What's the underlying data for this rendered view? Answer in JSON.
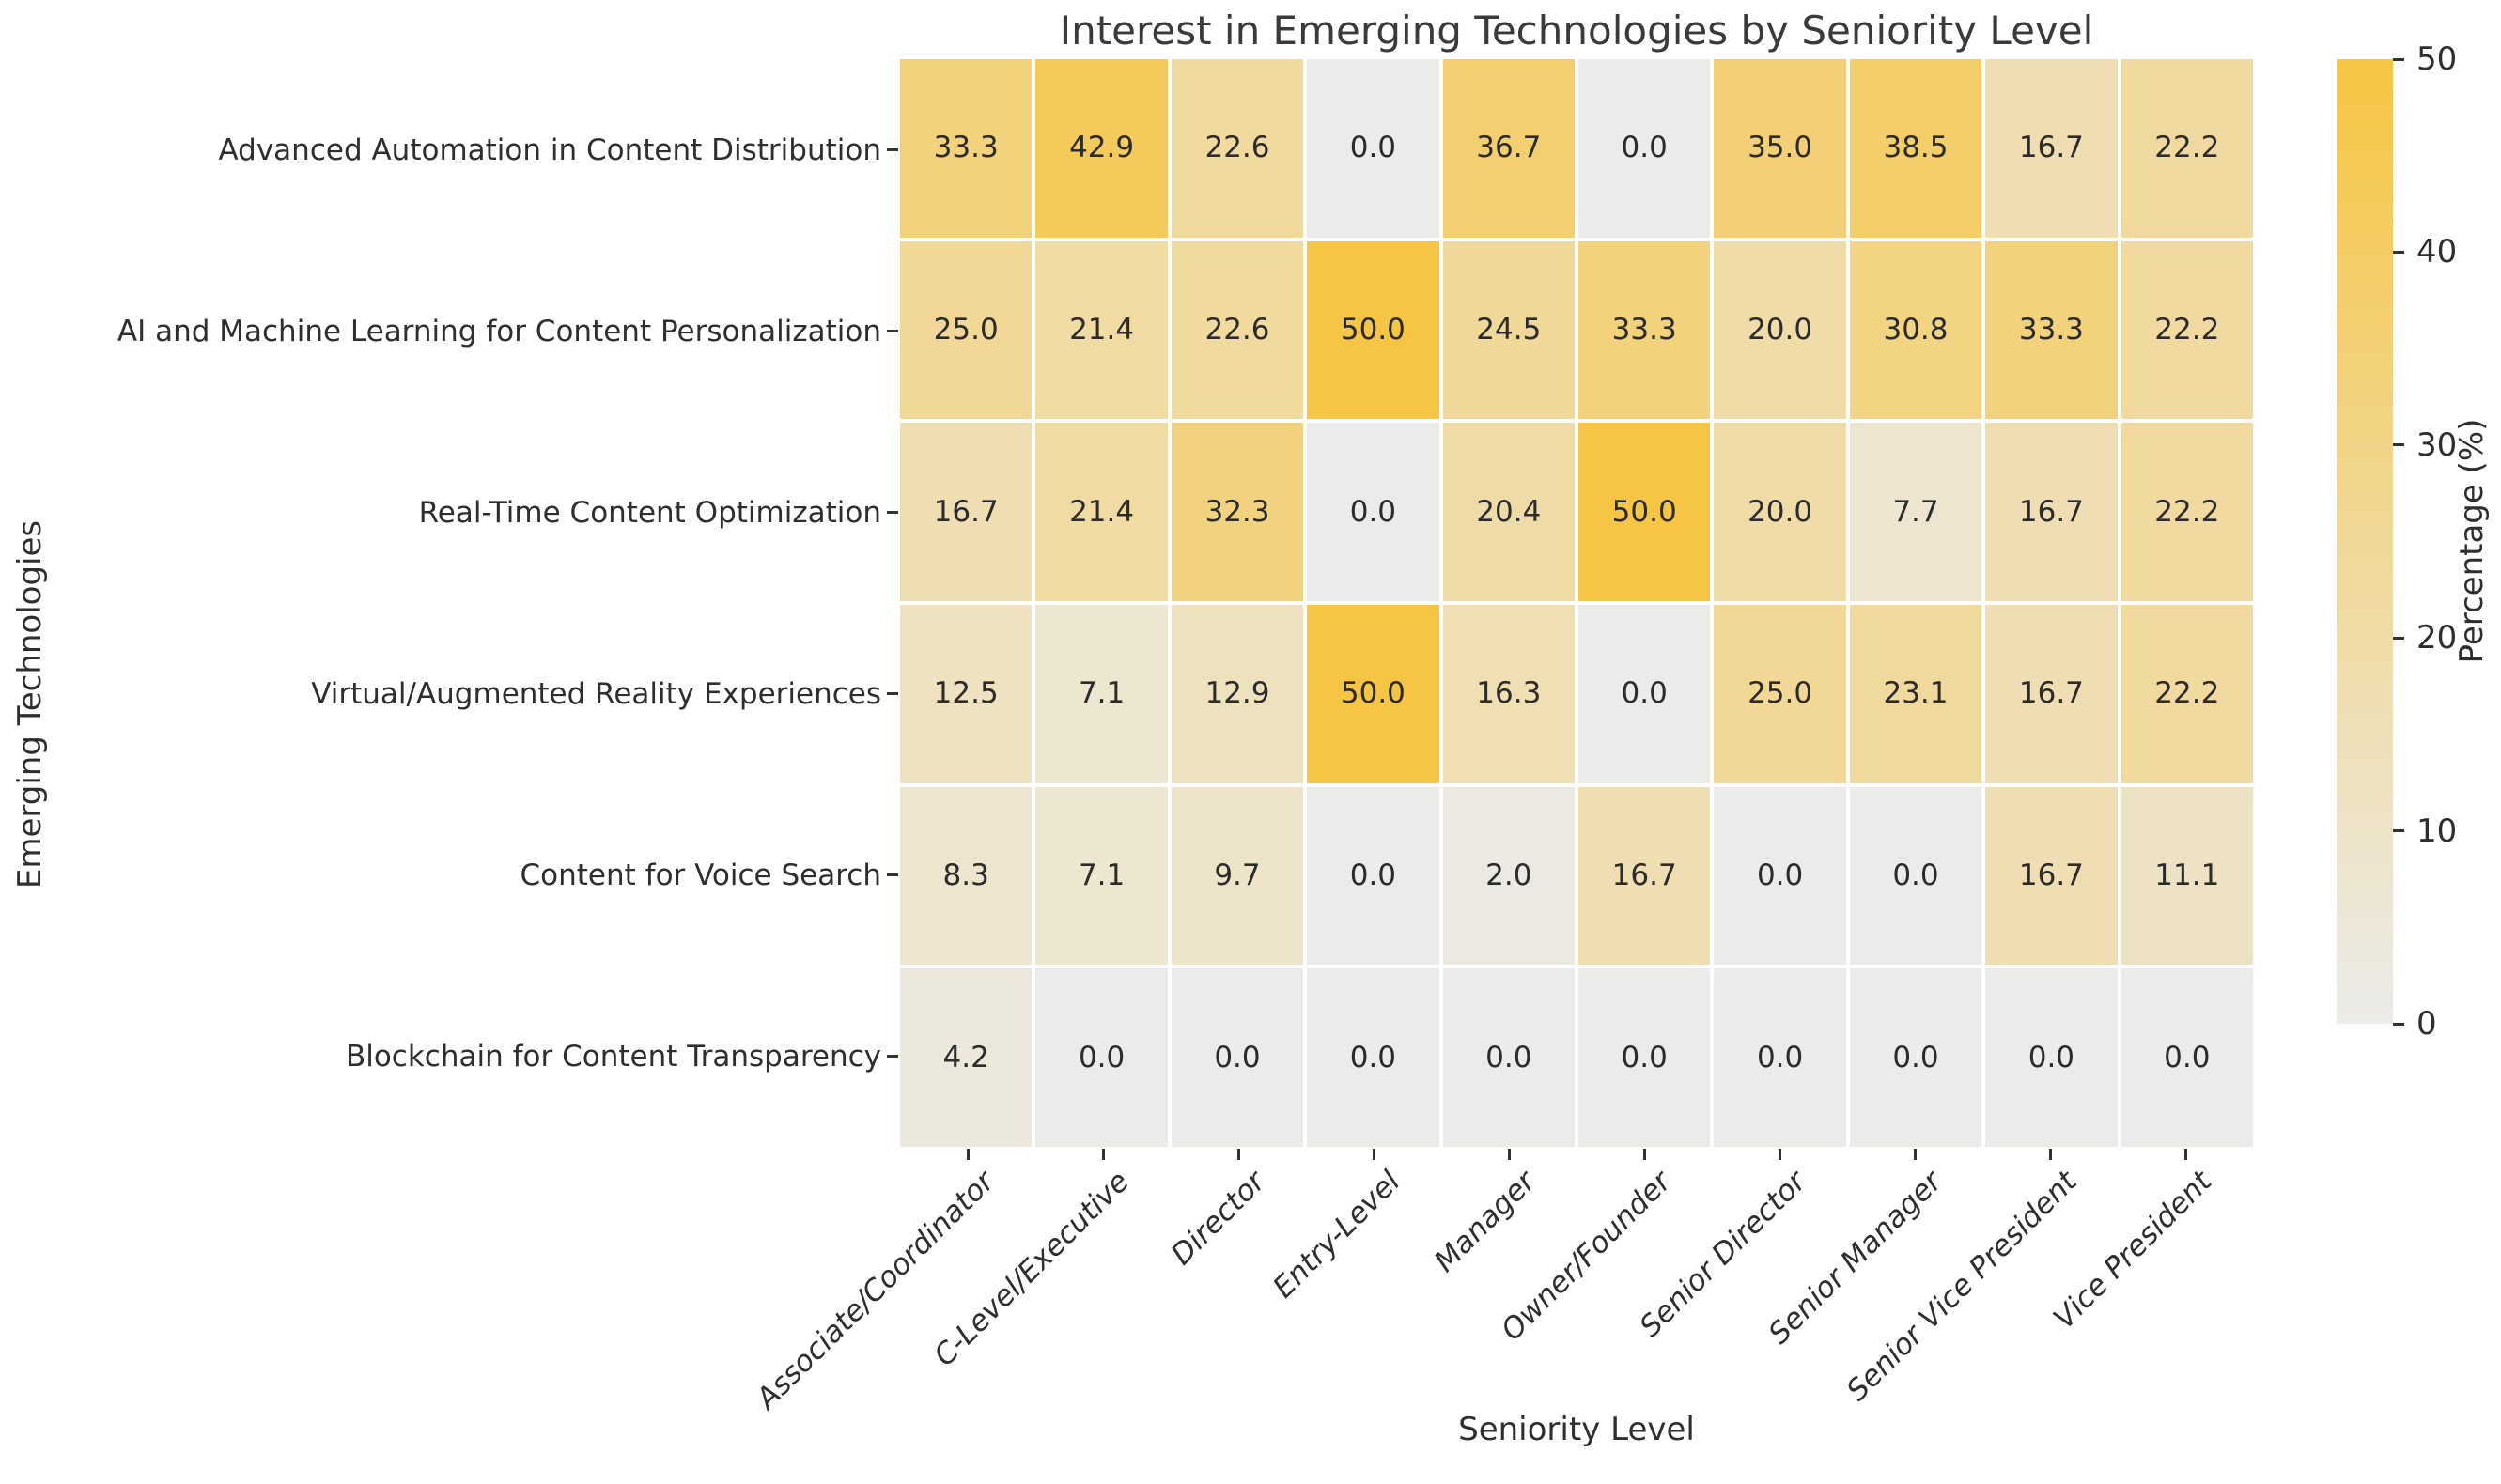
{
  "chart_data": {
    "type": "heatmap",
    "title": "Interest in Emerging Technologies by Seniority Level",
    "xlabel": "Seniority Level",
    "ylabel": "Emerging Technologies",
    "colorbar": {
      "label": "Percentage (%)",
      "ticks": [
        0,
        10,
        20,
        30,
        40,
        50
      ],
      "min": 0,
      "max": 50
    },
    "columns": [
      "Associate/Coordinator",
      "C-Level/Executive",
      "Director",
      "Entry-Level",
      "Manager",
      "Owner/Founder",
      "Senior Director",
      "Senior Manager",
      "Senior Vice President",
      "Vice President"
    ],
    "rows": [
      "Advanced Automation in Content Distribution",
      "AI and Machine Learning for Content Personalization",
      "Real-Time Content Optimization",
      "Virtual/Augmented Reality Experiences",
      "Content for Voice Search",
      "Blockchain for Content Transparency"
    ],
    "values": [
      [
        33.3,
        42.9,
        22.6,
        0.0,
        36.7,
        0.0,
        35.0,
        38.5,
        16.7,
        22.2
      ],
      [
        25.0,
        21.4,
        22.6,
        50.0,
        24.5,
        33.3,
        20.0,
        30.8,
        33.3,
        22.2
      ],
      [
        16.7,
        21.4,
        32.3,
        0.0,
        20.4,
        50.0,
        20.0,
        7.7,
        16.7,
        22.2
      ],
      [
        12.5,
        7.1,
        12.9,
        50.0,
        16.3,
        0.0,
        25.0,
        23.1,
        16.7,
        22.2
      ],
      [
        8.3,
        7.1,
        9.7,
        0.0,
        2.0,
        16.7,
        0.0,
        0.0,
        16.7,
        11.1
      ],
      [
        4.2,
        0.0,
        0.0,
        0.0,
        0.0,
        0.0,
        0.0,
        0.0,
        0.0,
        0.0
      ]
    ],
    "grid": "off",
    "legend": "colorbar-right",
    "colors": {
      "low": "#ebebe9",
      "high": "#f6c543",
      "cell_text": "#2b2b2b",
      "label_text": "#2e2e2e",
      "title_text": "#3a3a3a",
      "tick_mark": "#333333"
    }
  }
}
